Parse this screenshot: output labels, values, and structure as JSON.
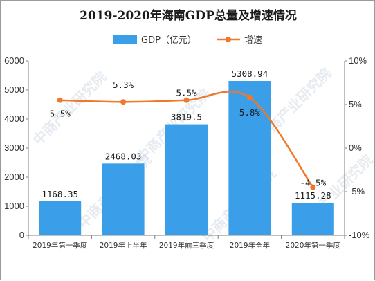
{
  "chart_data": {
    "type": "bar",
    "title": "2019-2020年海南GDP总量及增速情况",
    "categories": [
      "2019年第一季度",
      "2019年上半年",
      "2019年前三季度",
      "2019年全年",
      "2020年第一季度"
    ],
    "series": [
      {
        "name": "GDP（亿元）",
        "type": "bar",
        "axis": "left",
        "values": [
          1168.35,
          2468.03,
          3819.5,
          5308.94,
          1115.28
        ],
        "labels": [
          "1168.35",
          "2468.03",
          "3819.5",
          "5308.94",
          "1115.28"
        ],
        "color": "#3a9ee8"
      },
      {
        "name": "增速",
        "type": "line",
        "axis": "right",
        "values": [
          5.5,
          5.3,
          5.5,
          5.8,
          -4.5
        ],
        "labels": [
          "5.5%",
          "5.3%",
          "5.5%",
          "5.8%",
          "-4.5%"
        ],
        "color": "#f07828"
      }
    ],
    "y_left": {
      "range": [
        0,
        6000
      ],
      "ticks": [
        "0",
        "1000",
        "2000",
        "3000",
        "4000",
        "5000",
        "6000"
      ]
    },
    "y_right": {
      "range": [
        -10,
        10
      ],
      "ticks": [
        "-10%",
        "-5%",
        "0%",
        "5%",
        "10%"
      ]
    },
    "grid": false,
    "legend": "top-center"
  },
  "watermark": "中商产业研究院"
}
